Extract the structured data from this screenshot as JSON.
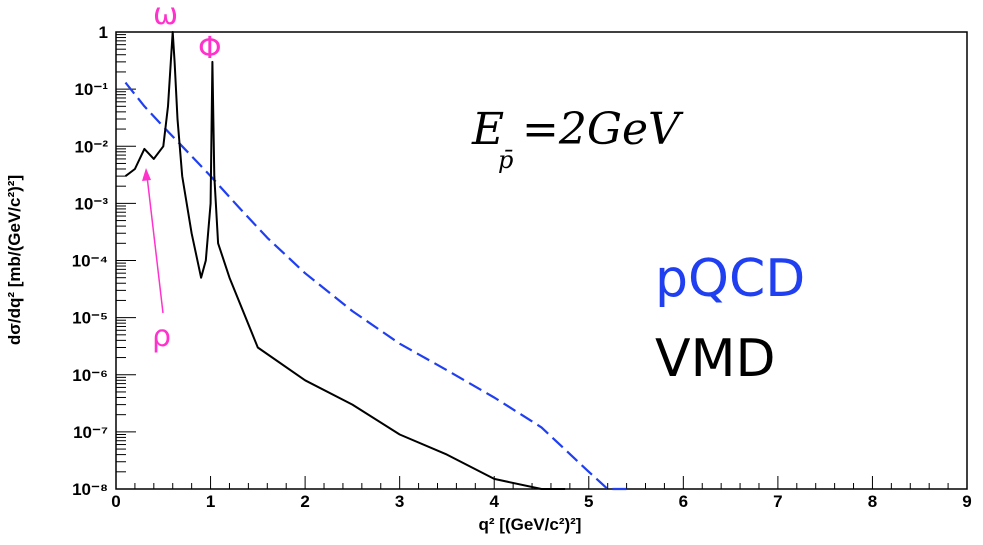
{
  "chart_data": {
    "type": "line",
    "title": "",
    "xlabel": "q² [(GeV/c²)²]",
    "ylabel": "dσ/dq² [mb/(GeV/c²)²]",
    "xlim": [
      0,
      9
    ],
    "ylim": [
      1e-08,
      1
    ],
    "yscale": "log",
    "grid": false,
    "x_ticks": [
      "0",
      "1",
      "2",
      "3",
      "4",
      "5",
      "6",
      "7",
      "8",
      "9"
    ],
    "y_ticks": [
      "10⁻⁸",
      "10⁻⁷",
      "10⁻⁶",
      "10⁻⁵",
      "10⁻⁴",
      "10⁻³",
      "10⁻²",
      "10⁻¹",
      "1"
    ],
    "legend_placement": "right",
    "energy_label": {
      "symbol": "E",
      "subscript": "p̄",
      "text": "=2GeV"
    },
    "series": [
      {
        "name": "pQCD",
        "color": "#1f3ff0",
        "style": "dashed",
        "x": [
          0.1,
          0.3,
          0.5,
          0.7,
          1.0,
          1.3,
          1.6,
          2.0,
          2.5,
          3.0,
          3.5,
          4.0,
          4.5,
          5.0,
          5.2,
          5.35,
          5.45
        ],
        "y": [
          0.13,
          0.05,
          0.022,
          0.01,
          0.003,
          0.00085,
          0.00025,
          6e-05,
          1.3e-05,
          3.5e-06,
          1.2e-06,
          4e-07,
          1.2e-07,
          2e-08,
          5.5e-09,
          1.8e-09,
          1e-08
        ]
      },
      {
        "name": "VMD",
        "color": "#000000",
        "style": "solid",
        "x": [
          0.1,
          0.2,
          0.3,
          0.4,
          0.5,
          0.55,
          0.58,
          0.6,
          0.62,
          0.65,
          0.7,
          0.8,
          0.9,
          0.95,
          1.0,
          1.02,
          1.04,
          1.08,
          1.2,
          1.5,
          2.0,
          2.5,
          3.0,
          3.5,
          4.0,
          4.5,
          4.75
        ],
        "y": [
          0.003,
          0.004,
          0.009,
          0.006,
          0.01,
          0.05,
          0.3,
          1.0,
          0.3,
          0.03,
          0.003,
          0.0003,
          5e-05,
          0.0001,
          0.001,
          0.3,
          0.003,
          0.0002,
          5e-05,
          3e-06,
          8e-07,
          3e-07,
          9e-08,
          4e-08,
          1.5e-08,
          6e-09,
          1e-08
        ]
      }
    ],
    "annotations": [
      {
        "text": "ω",
        "x": 0.6
      },
      {
        "text": "Φ",
        "x": 1.02
      },
      {
        "text": "ρ",
        "x": 0.5
      }
    ]
  }
}
